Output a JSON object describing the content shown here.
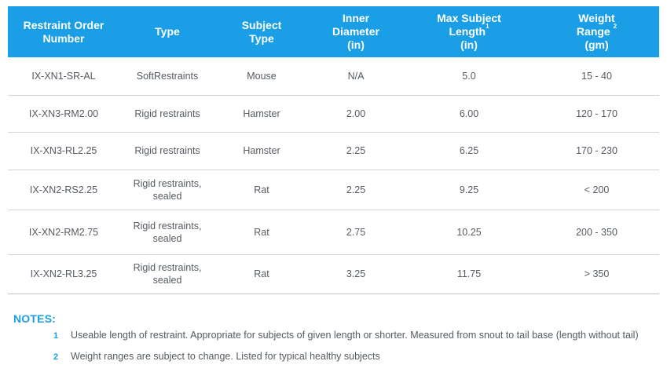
{
  "table": {
    "headers": [
      {
        "text": "Restraint Order Number",
        "sup": ""
      },
      {
        "text": "Type",
        "sup": ""
      },
      {
        "text": "Subject Type",
        "sup": ""
      },
      {
        "text": "Inner Diameter (in)",
        "sup": ""
      },
      {
        "text": "Max Subject Length",
        "sup": "1",
        "unit": "(in)"
      },
      {
        "text": "Weight Range",
        "sup": "2",
        "unit": "(gm)"
      }
    ],
    "header_lines": {
      "h1": [
        "Restraint Order",
        "Number"
      ],
      "h2": [
        "Type"
      ],
      "h3": [
        "Subject",
        "Type"
      ],
      "h4": [
        "Inner",
        "Diameter",
        "(in)"
      ],
      "h5": [
        "Max Subject",
        "Length",
        "(in)"
      ],
      "h6": [
        "Weight",
        "Range",
        "(gm)"
      ]
    },
    "rows": [
      {
        "order": "IX-XN1-SR-AL",
        "type_line1": "SoftRestraints",
        "type_line2": "",
        "subject": "Mouse",
        "diameter": "N/A",
        "length": "5.0",
        "weight": "15 - 40"
      },
      {
        "order": "IX-XN3-RM2.00",
        "type_line1": "Rigid restraints",
        "type_line2": "",
        "subject": "Hamster",
        "diameter": "2.00",
        "length": "6.00",
        "weight": "120 - 170"
      },
      {
        "order": "IX-XN3-RL2.25",
        "type_line1": "Rigid restraints",
        "type_line2": "",
        "subject": "Hamster",
        "diameter": "2.25",
        "length": "6.25",
        "weight": "170 - 230"
      },
      {
        "order": "IX-XN2-RS2.25",
        "type_line1": "Rigid restraints,",
        "type_line2": "sealed",
        "subject": "Rat",
        "diameter": "2.25",
        "length": "9.25",
        "weight": "< 200"
      },
      {
        "order": "IX-XN2-RM2.75",
        "type_line1": "Rigid restraints,",
        "type_line2": "sealed",
        "subject": "Rat",
        "diameter": "2.75",
        "length": "10.25",
        "weight": "200 - 350"
      },
      {
        "order": "IX-XN2-RL3.25",
        "type_line1": "Rigid restraints,",
        "type_line2": "sealed",
        "subject": "Rat",
        "diameter": "3.25",
        "length": "11.75",
        "weight": "> 350"
      }
    ]
  },
  "notes": {
    "title": "NOTES:",
    "items": [
      {
        "num": "1",
        "text": "Useable length of restraint. Appropriate for subjects of given length or shorter. Measured from snout to tail base (length without tail)"
      },
      {
        "num": "2",
        "text": "Weight ranges are subject to change. Listed for typical healthy subjects"
      }
    ]
  },
  "colors": {
    "header_bg": "#1a9ee6",
    "accent": "#1a9ee6",
    "text": "#555b62",
    "divider": "#cfd3d6"
  }
}
